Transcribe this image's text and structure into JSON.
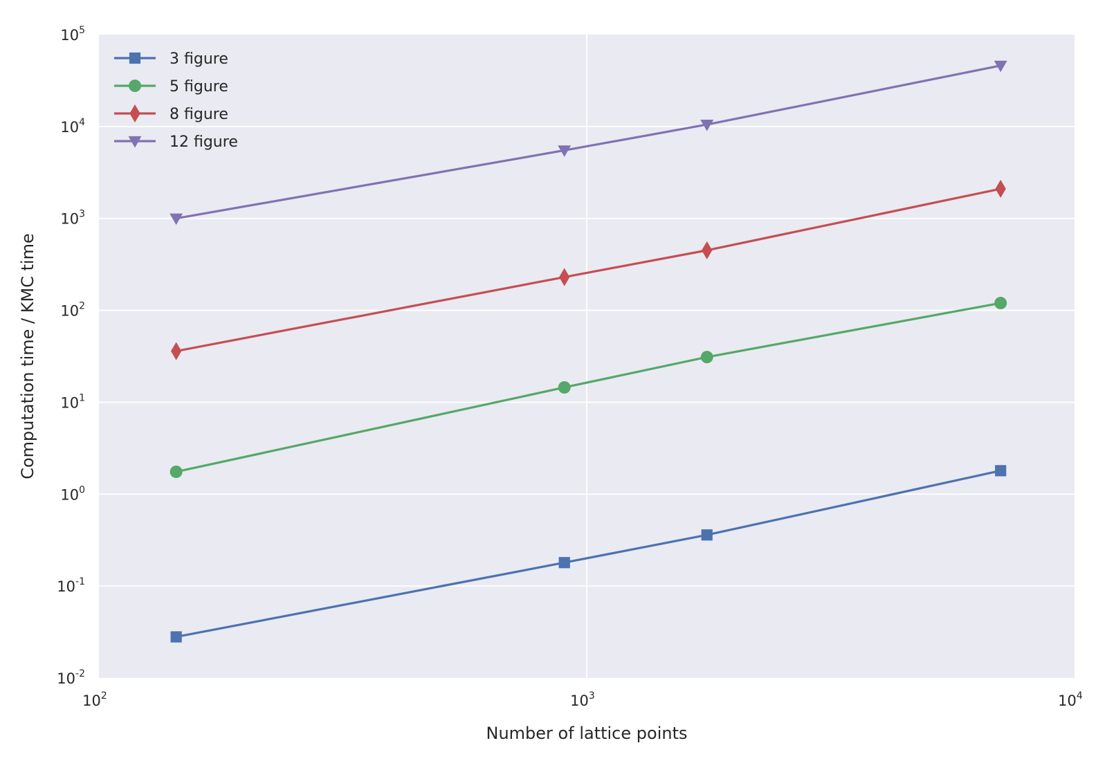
{
  "chart_data": {
    "type": "line",
    "title": "",
    "xlabel": "Number of lattice points",
    "ylabel": "Computation time / KMC time",
    "xscale": "log",
    "yscale": "log",
    "xlim": [
      100,
      10000
    ],
    "ylim": [
      0.01,
      100000
    ],
    "grid": true,
    "legend_position": "upper left",
    "x_ticks": [
      {
        "base": "10",
        "exp": "2"
      },
      {
        "base": "10",
        "exp": "3"
      },
      {
        "base": "10",
        "exp": "4"
      }
    ],
    "y_ticks": [
      {
        "base": "10",
        "exp": "-2"
      },
      {
        "base": "10",
        "exp": "-1"
      },
      {
        "base": "10",
        "exp": "0"
      },
      {
        "base": "10",
        "exp": "1"
      },
      {
        "base": "10",
        "exp": "2"
      },
      {
        "base": "10",
        "exp": "3"
      },
      {
        "base": "10",
        "exp": "4"
      },
      {
        "base": "10",
        "exp": "5"
      }
    ],
    "x": [
      144,
      900,
      1764,
      7056
    ],
    "series": [
      {
        "name": "3 figure",
        "marker": "square",
        "color": "#4c72b0",
        "values": [
          0.028,
          0.18,
          0.36,
          1.8
        ]
      },
      {
        "name": "5 figure",
        "marker": "circle",
        "color": "#55a868",
        "values": [
          1.75,
          14.5,
          31,
          120
        ]
      },
      {
        "name": "8 figure",
        "marker": "diamond",
        "color": "#c44e52",
        "values": [
          36,
          230,
          450,
          2100
        ]
      },
      {
        "name": "12 figure",
        "marker": "triangle-down",
        "color": "#8172b2",
        "values": [
          1000,
          5500,
          10500,
          46000
        ]
      }
    ],
    "colors": {
      "plot_background": "#eaeaf2",
      "grid": "#ffffff",
      "text": "#262626"
    }
  }
}
